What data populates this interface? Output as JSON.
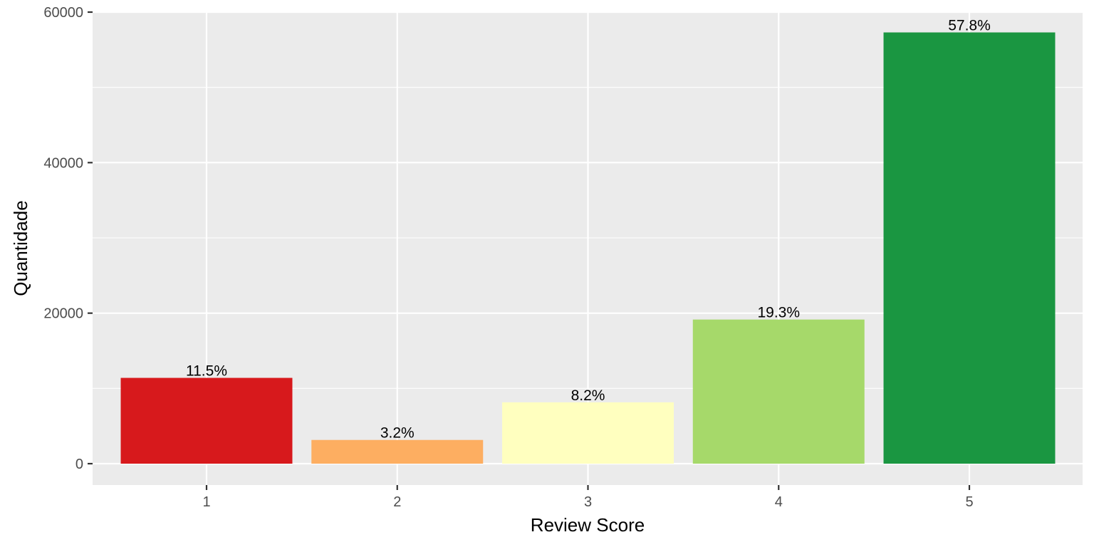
{
  "chart_data": {
    "type": "bar",
    "title": "",
    "xlabel": "Review Score",
    "ylabel": "Quantidade",
    "categories": [
      "1",
      "2",
      "3",
      "4",
      "5"
    ],
    "values": [
      11400,
      3150,
      8150,
      19150,
      57300
    ],
    "data_labels": [
      "11.5%",
      "3.2%",
      "8.2%",
      "19.3%",
      "57.8%"
    ],
    "colors": [
      "#d7191c",
      "#fdae61",
      "#ffffbf",
      "#a6d96a",
      "#1a9641"
    ],
    "ylim": [
      0,
      60000
    ],
    "yticks": [
      0,
      20000,
      40000,
      60000
    ],
    "ytick_labels": [
      "0",
      "20000",
      "40000",
      "60000"
    ],
    "grid": true,
    "legend": "none",
    "panel_background": "#ebebeb",
    "grid_color": "#ffffff"
  }
}
